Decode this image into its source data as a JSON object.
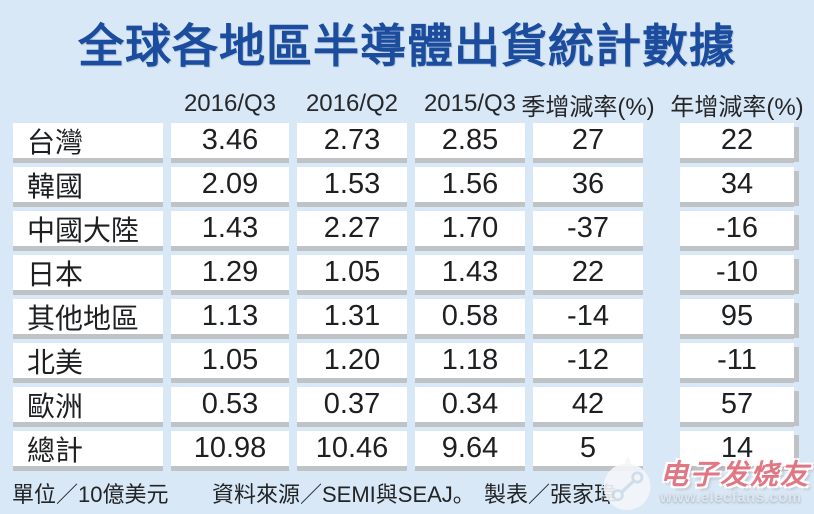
{
  "title": "全球各地區半導體出貨統計數據",
  "table": {
    "column_headers": [
      "2016/Q3",
      "2016/Q2",
      "2015/Q3",
      "季增減率(%)",
      "年增減率(%)"
    ],
    "rows": [
      {
        "label": "台灣",
        "values": [
          "3.46",
          "2.73",
          "2.85",
          "27",
          "22"
        ]
      },
      {
        "label": "韓國",
        "values": [
          "2.09",
          "1.53",
          "1.56",
          "36",
          "34"
        ]
      },
      {
        "label": "中國大陸",
        "values": [
          "1.43",
          "2.27",
          "1.70",
          "-37",
          "-16"
        ]
      },
      {
        "label": "日本",
        "values": [
          "1.29",
          "1.05",
          "1.43",
          "22",
          "-10"
        ]
      },
      {
        "label": "其他地區",
        "values": [
          "1.13",
          "1.31",
          "0.58",
          "-14",
          "95"
        ]
      },
      {
        "label": "北美",
        "values": [
          "1.05",
          "1.20",
          "1.18",
          "-12",
          "-11"
        ]
      },
      {
        "label": "歐洲",
        "values": [
          "0.53",
          "0.37",
          "0.34",
          "42",
          "57"
        ]
      },
      {
        "label": "總計",
        "values": [
          "10.98",
          "10.46",
          "9.64",
          "5",
          "14"
        ]
      }
    ]
  },
  "footer": {
    "unit": "單位／10億美元",
    "source": "資料來源／SEMI與SEAJ。",
    "credit": "製表／張家瑋"
  },
  "watermark": {
    "brand": "电子发烧友",
    "url": "www.elecfans.com"
  },
  "colors": {
    "background": "#d9e8f6",
    "title_blue": "#1b4c9d",
    "cell_white": "#ffffff",
    "cell_shadow": "#bfc3c6",
    "text_dark": "#1e1f21",
    "watermark_pink": "#e0717e"
  },
  "chart_data": {
    "type": "table",
    "title": "全球各地區半導體出貨統計數據",
    "columns": [
      "",
      "2016/Q3",
      "2016/Q2",
      "2015/Q3",
      "季增減率(%)",
      "年增減率(%)"
    ],
    "rows": [
      [
        "台灣",
        3.46,
        2.73,
        2.85,
        27,
        22
      ],
      [
        "韓國",
        2.09,
        1.53,
        1.56,
        36,
        34
      ],
      [
        "中國大陸",
        1.43,
        2.27,
        1.7,
        -37,
        -16
      ],
      [
        "日本",
        1.29,
        1.05,
        1.43,
        22,
        -10
      ],
      [
        "其他地區",
        1.13,
        1.31,
        0.58,
        -14,
        95
      ],
      [
        "北美",
        1.05,
        1.2,
        1.18,
        -12,
        -11
      ],
      [
        "歐洲",
        0.53,
        0.37,
        0.34,
        42,
        57
      ],
      [
        "總計",
        10.98,
        10.46,
        9.64,
        5,
        14
      ]
    ],
    "unit_note": "單位／10億美元",
    "source_note": "資料來源／SEMI與SEAJ。",
    "credit_note": "製表／張家瑋"
  }
}
